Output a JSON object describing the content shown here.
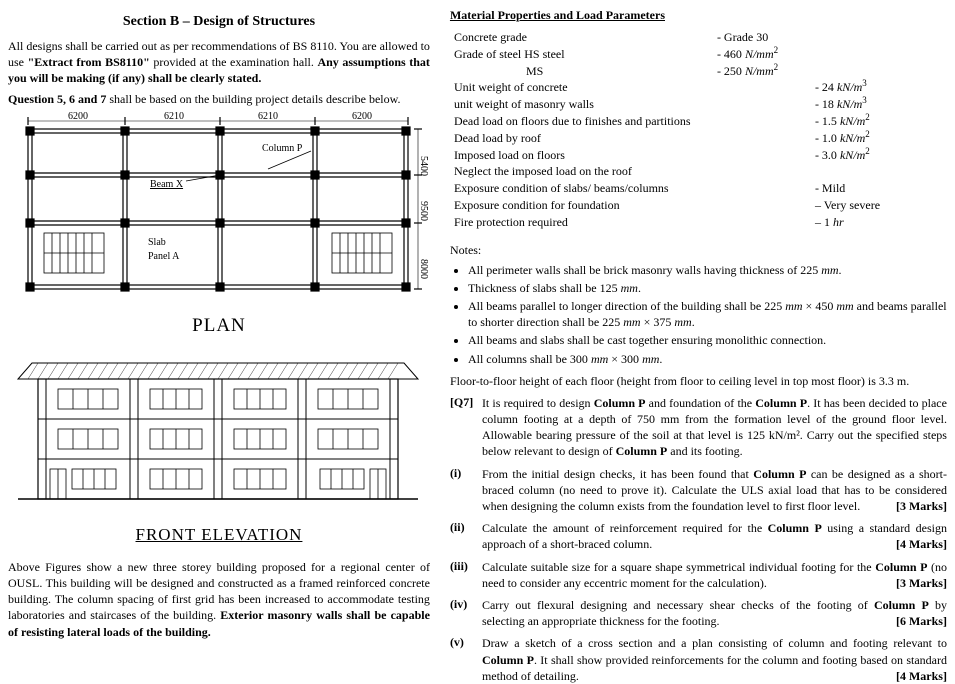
{
  "left": {
    "section_title": "Section B – Design of Structures",
    "intro_p1a": "All designs shall be carried out as per recommendations of BS 8110. You are allowed to use ",
    "intro_p1b": "\"Extract from BS8110\"",
    "intro_p1c": " provided at the examination hall. ",
    "intro_p1d": "Any assumptions that you will be making (if any) shall be clearly stated.",
    "intro_p2a": "Question 5, 6 and 7",
    "intro_p2b": " shall be based on the building project details describe below.",
    "plan": {
      "dim_top": [
        "6200",
        "6210",
        "6210",
        "6200"
      ],
      "dim_right": [
        "5400",
        "9500",
        "8000"
      ],
      "beam_label": "Beam  X",
      "column_label": "Column P",
      "slab_label1": "Slab",
      "slab_label2": "Panel  A",
      "title": "PLAN"
    },
    "elev_title": "FRONT ELEVATION",
    "bottom_p_a": "Above Figures show a new three storey building proposed for a regional center of OUSL. This building will be designed and constructed as a framed reinforced concrete building. The column spacing of first grid has been increased to accommodate testing laboratories and staircases of the building. ",
    "bottom_p_b": "Exterior masonry walls shall be capable of resisting lateral loads of the building."
  },
  "right": {
    "mat_title": "Material Properties and Load Parameters",
    "props": [
      {
        "k": "Concrete grade",
        "m": "- Grade 30",
        "v": ""
      },
      {
        "k": "Grade of steel HS steel",
        "m": "- 460 N/mm²",
        "v": ""
      },
      {
        "k": "                        MS",
        "m": "- 250 N/mm²",
        "v": ""
      },
      {
        "k": "Unit weight of concrete",
        "m": "",
        "v": "- 24 kN/m³"
      },
      {
        "k": "unit weight of masonry walls",
        "m": "",
        "v": "- 18 kN/m³"
      },
      {
        "k": "Dead load on floors due to finishes and partitions",
        "m": "",
        "v": "- 1.5 kN/m²"
      },
      {
        "k": "Dead load by roof",
        "m": "",
        "v": "- 1.0 kN/m²"
      },
      {
        "k": "Imposed load on floors",
        "m": "",
        "v": "- 3.0 kN/m²"
      },
      {
        "k": "Neglect the imposed load on the roof",
        "m": "",
        "v": ""
      },
      {
        "k": "Exposure condition of slabs/ beams/columns",
        "m": "",
        "v": "- Mild"
      },
      {
        "k": "Exposure condition for foundation",
        "m": "",
        "v": "– Very severe"
      },
      {
        "k": "Fire protection required",
        "m": "",
        "v": "– 1 hr"
      }
    ],
    "notes_title": "Notes:",
    "notes": [
      "All perimeter walls shall be brick masonry walls having thickness of 225 mm.",
      "Thickness of slabs shall be 125 mm.",
      "All beams parallel to longer direction of the building shall be 225 mm × 450 mm and beams parallel to shorter direction shall be 225 mm × 375 mm.",
      "All beams and slabs shall be cast together ensuring monolithic connection.",
      "All columns shall be 300 mm × 300mm."
    ],
    "floor_height": "Floor-to-floor height of each floor (height from floor to ceiling level in top most floor) is 3.3 m.",
    "q7": {
      "tag": "[Q7]",
      "body_a": "It is required to design ",
      "body_b": "Column P",
      "body_c": " and foundation of the ",
      "body_d": "Column P",
      "body_e": ". It has been decided to place column footing at a depth of 750 mm from the formation level of the ground floor level. Allowable bearing pressure of the soil at that level is 125 kN/m². Carry out the specified steps below relevant to design of ",
      "body_f": "Column P",
      "body_g": " and its footing."
    },
    "parts": [
      {
        "n": "(i)",
        "a": "From the initial design checks, it has been found that ",
        "b": "Column P",
        "c": " can be designed as a short-braced column (no need to prove it). Calculate the ULS axial load that has to be considered when designing the column exists from the foundation level to first floor level.",
        "m": "[3 Marks]"
      },
      {
        "n": "(ii)",
        "a": "Calculate the amount of reinforcement required for the ",
        "b": "Column P",
        "c": " using a standard design approach of a short-braced column.",
        "m": "[4 Marks]"
      },
      {
        "n": "(iii)",
        "a": "Calculate suitable size for a square shape symmetrical individual footing for the ",
        "b": "Column P",
        "c": " (no need to consider any eccentric moment for the calculation).",
        "m": "[3 Marks]"
      },
      {
        "n": "(iv)",
        "a": "Carry out flexural designing and necessary shear checks of the footing of ",
        "b": "Column P",
        "c": " by selecting an appropriate thickness for the footing.",
        "m": "[6 Marks]"
      },
      {
        "n": "(v)",
        "a": "Draw a sketch of a cross section and a plan consisting of column and footing relevant to ",
        "b": "Column P",
        "c": ". It shall show provided reinforcements for the column and footing based on standard method of detailing.",
        "m": "[4 Marks]"
      }
    ]
  }
}
